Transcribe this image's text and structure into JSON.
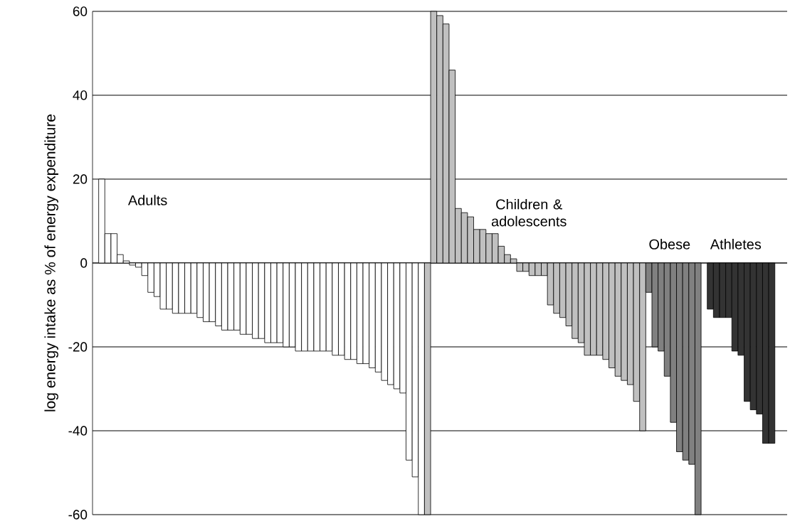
{
  "chart_data": {
    "type": "bar",
    "ylabel": "log energy intake as % of energy expenditure",
    "categories": [
      null,
      null,
      null,
      null,
      null,
      null,
      null,
      null,
      null,
      null,
      null,
      null,
      null,
      null,
      null,
      null,
      null,
      null,
      null,
      null,
      null,
      null,
      null,
      null,
      null,
      null,
      null,
      null,
      null,
      null,
      null,
      null,
      null,
      null,
      null,
      null,
      null,
      null,
      null,
      null,
      null,
      null,
      null,
      null,
      null,
      null,
      null,
      null,
      null,
      null,
      null,
      null,
      null,
      null,
      null,
      null,
      null,
      null,
      null,
      null,
      null,
      null,
      null,
      null,
      null,
      null,
      null,
      null,
      null,
      null,
      null,
      null,
      null,
      null,
      null,
      null,
      null,
      null,
      null,
      null,
      null,
      null,
      null,
      null,
      null,
      null,
      null,
      null,
      null,
      null,
      null,
      null,
      null,
      null,
      null,
      null,
      null,
      null,
      null,
      null,
      null,
      null,
      null,
      null,
      null,
      null,
      null,
      null,
      null,
      null,
      null,
      null,
      null
    ],
    "series": [
      {
        "name": "Adults",
        "color": "#ffffff",
        "values": [
          null,
          20,
          7,
          7,
          2,
          0.5,
          -0.5,
          -1,
          -3,
          -7,
          -8,
          -11,
          -11,
          -12,
          -12,
          -12,
          -12,
          -13,
          -14,
          -14,
          -15,
          -16,
          -16,
          -16,
          -17,
          -17,
          -18,
          -18,
          -19,
          -19,
          -19,
          -20,
          -20,
          -21,
          -21,
          -21,
          -21,
          -21,
          -21,
          -22,
          -22,
          -23,
          -23,
          -24,
          -24,
          -25,
          -26,
          -28,
          -29,
          -30,
          -31,
          -47,
          -51,
          -60,
          null,
          null,
          null,
          null,
          null,
          null,
          null,
          null,
          null,
          null,
          null,
          null,
          null,
          null,
          null,
          null,
          null,
          null,
          null,
          null,
          null,
          null,
          null,
          null,
          null,
          null,
          null,
          null,
          null,
          null,
          null,
          null,
          null,
          null,
          null,
          null,
          null,
          null,
          null,
          null,
          null,
          null,
          null,
          null,
          null,
          null,
          null,
          null,
          null,
          null,
          null,
          null,
          null,
          null,
          null,
          null,
          null,
          null,
          null
        ]
      },
      {
        "name": "Children & adolescents",
        "color": "#c0c0c0",
        "values": [
          null,
          null,
          null,
          null,
          null,
          null,
          null,
          null,
          null,
          null,
          null,
          null,
          null,
          null,
          null,
          null,
          null,
          null,
          null,
          null,
          null,
          null,
          null,
          null,
          null,
          null,
          null,
          null,
          null,
          null,
          null,
          null,
          null,
          null,
          null,
          null,
          null,
          null,
          null,
          null,
          null,
          null,
          null,
          null,
          null,
          null,
          null,
          null,
          null,
          null,
          null,
          null,
          null,
          null,
          -60,
          60,
          59,
          57,
          46,
          13,
          12,
          11,
          8,
          8,
          7,
          7,
          4,
          2,
          1,
          -2,
          -2,
          -3,
          -3,
          -3,
          -10,
          -12,
          -13,
          -15,
          -18,
          -19,
          -22,
          -22,
          -22,
          -23,
          -25,
          -27,
          -28,
          -29,
          -33,
          -40,
          null,
          null,
          null,
          null,
          null,
          null,
          null,
          null,
          null,
          null,
          null,
          null,
          null,
          null,
          null,
          null,
          null,
          null,
          null,
          null,
          null,
          null,
          null
        ]
      },
      {
        "name": "Obese",
        "color": "#808080",
        "values": [
          null,
          null,
          null,
          null,
          null,
          null,
          null,
          null,
          null,
          null,
          null,
          null,
          null,
          null,
          null,
          null,
          null,
          null,
          null,
          null,
          null,
          null,
          null,
          null,
          null,
          null,
          null,
          null,
          null,
          null,
          null,
          null,
          null,
          null,
          null,
          null,
          null,
          null,
          null,
          null,
          null,
          null,
          null,
          null,
          null,
          null,
          null,
          null,
          null,
          null,
          null,
          null,
          null,
          null,
          null,
          null,
          null,
          null,
          null,
          null,
          null,
          null,
          null,
          null,
          null,
          null,
          null,
          null,
          null,
          null,
          null,
          null,
          null,
          null,
          null,
          null,
          null,
          null,
          null,
          null,
          null,
          null,
          null,
          null,
          null,
          null,
          null,
          null,
          null,
          null,
          -7,
          -20,
          -21,
          -27,
          -38,
          -45,
          -47,
          -48,
          -60,
          null,
          null,
          null,
          null,
          null,
          null,
          null,
          null,
          null,
          null,
          null,
          null,
          null,
          null
        ]
      },
      {
        "name": "Athletes",
        "color": "#333333",
        "values": [
          null,
          null,
          null,
          null,
          null,
          null,
          null,
          null,
          null,
          null,
          null,
          null,
          null,
          null,
          null,
          null,
          null,
          null,
          null,
          null,
          null,
          null,
          null,
          null,
          null,
          null,
          null,
          null,
          null,
          null,
          null,
          null,
          null,
          null,
          null,
          null,
          null,
          null,
          null,
          null,
          null,
          null,
          null,
          null,
          null,
          null,
          null,
          null,
          null,
          null,
          null,
          null,
          null,
          null,
          null,
          null,
          null,
          null,
          null,
          null,
          null,
          null,
          null,
          null,
          null,
          null,
          null,
          null,
          null,
          null,
          null,
          null,
          null,
          null,
          null,
          null,
          null,
          null,
          null,
          null,
          null,
          null,
          null,
          null,
          null,
          null,
          null,
          null,
          null,
          null,
          null,
          null,
          null,
          null,
          null,
          null,
          null,
          null,
          null,
          null,
          -11,
          -13,
          -13,
          -13,
          -21,
          -22,
          -33,
          -35,
          -36,
          -43,
          -43,
          null,
          null
        ]
      }
    ],
    "ylim": [
      -60,
      60
    ],
    "yticks": [
      -60,
      -40,
      -20,
      0,
      20,
      40,
      60
    ],
    "grid": "y"
  }
}
